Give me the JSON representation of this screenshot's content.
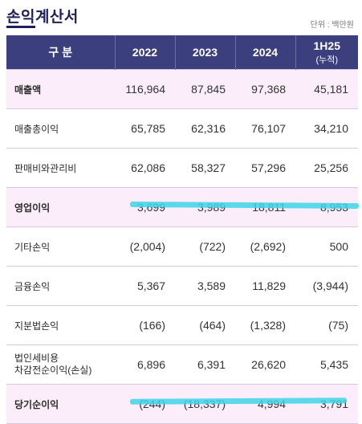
{
  "title": "손익계산서",
  "unit": "단위 : 백만원",
  "headers": {
    "category": "구 분",
    "years": [
      "2022",
      "2023",
      "2024"
    ],
    "last": "1H25",
    "last_sub": "(누적)"
  },
  "rows": [
    {
      "label": "매출액",
      "values": [
        "116,964",
        "87,845",
        "97,368",
        "45,181"
      ]
    },
    {
      "label": "매출총이익",
      "values": [
        "65,785",
        "62,316",
        "76,107",
        "34,210"
      ]
    },
    {
      "label": "판매비와관리비",
      "values": [
        "62,086",
        "58,327",
        "57,296",
        "25,256"
      ]
    },
    {
      "label": "영업이익",
      "values": [
        "3,699",
        "3,989",
        "18,811",
        "8,953"
      ]
    },
    {
      "label": "기타손익",
      "values": [
        "(2,004)",
        "(722)",
        "(2,692)",
        "500"
      ]
    },
    {
      "label": "금융손익",
      "values": [
        "5,367",
        "3,589",
        "11,829",
        "(3,944)"
      ]
    },
    {
      "label": "지분법손익",
      "values": [
        "(166)",
        "(464)",
        "(1,328)",
        "(75)"
      ]
    },
    {
      "label": "법인세비용",
      "label2": "차감전순이익(손실)",
      "values": [
        "6,896",
        "6,391",
        "26,620",
        "5,435"
      ]
    },
    {
      "label": "당기순이익",
      "values": [
        "(244)",
        "(18,337)",
        "4,994",
        "3,791"
      ]
    }
  ],
  "colors": {
    "header_bg": "#3b3f7e",
    "highlight_row": "#fbeefa",
    "marker": "#3fd3e8"
  }
}
